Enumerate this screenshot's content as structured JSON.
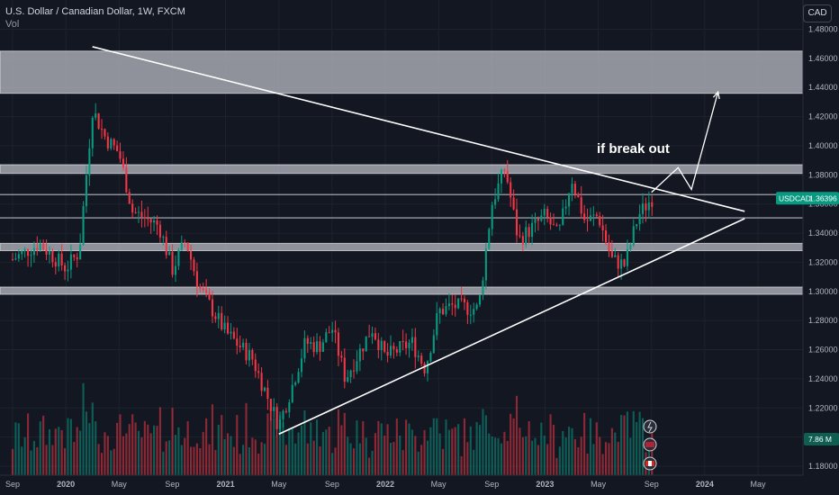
{
  "header": {
    "title": "U.S. Dollar / Canadian Dollar, 1W, FXCM",
    "volume_label": "Vol"
  },
  "currency_button": "CAD",
  "annotation": "if break out",
  "price_tag": {
    "symbol": "USDCAD",
    "value": "1.36396",
    "color": "#089981"
  },
  "volume_tag": "7.86 M",
  "colors": {
    "background": "#131722",
    "up": "#089981",
    "down": "#f23645",
    "zone": "#b2b5be",
    "line": "#ffffff",
    "grid": "#1e222d"
  },
  "icons": [
    "lightning-icon",
    "us-flag-icon",
    "canada-flag-icon"
  ],
  "chart_data": {
    "type": "candlestick",
    "title": "U.S. Dollar / Canadian Dollar, 1W, FXCM",
    "x_ticks": [
      "Sep",
      "2020",
      "May",
      "Sep",
      "2021",
      "May",
      "Sep",
      "2022",
      "May",
      "Sep",
      "2023",
      "May",
      "Sep",
      "2024",
      "May"
    ],
    "x_tick_dates": [
      "2019-09",
      "2020-01",
      "2020-05",
      "2020-09",
      "2021-01",
      "2021-05",
      "2021-09",
      "2022-01",
      "2022-05",
      "2022-09",
      "2023-01",
      "2023-05",
      "2023-09",
      "2024-01",
      "2024-05"
    ],
    "y_ticks": [
      "1.48000",
      "1.46000",
      "1.44000",
      "1.42000",
      "1.40000",
      "1.38000",
      "1.36000",
      "1.34000",
      "1.32000",
      "1.30000",
      "1.28000",
      "1.26000",
      "1.24000",
      "1.22000",
      "1.20000",
      "1.18000"
    ],
    "y_range": [
      1.175,
      1.49
    ],
    "last_price": 1.36396,
    "resistance_zones": [
      [
        1.436,
        1.465
      ],
      [
        1.381,
        1.387
      ],
      [
        1.328,
        1.333
      ],
      [
        1.298,
        1.303
      ]
    ],
    "horizontal_lines": [
      1.3665,
      1.3505
    ],
    "close_path": [
      {
        "date": "2019-09",
        "close": 1.322
      },
      {
        "date": "2019-11",
        "close": 1.333
      },
      {
        "date": "2020-01",
        "close": 1.316
      },
      {
        "date": "2020-02",
        "close": 1.327
      },
      {
        "date": "2020-03",
        "close": 1.425
      },
      {
        "date": "2020-04",
        "close": 1.405
      },
      {
        "date": "2020-05",
        "close": 1.395
      },
      {
        "date": "2020-06",
        "close": 1.355
      },
      {
        "date": "2020-08",
        "close": 1.345
      },
      {
        "date": "2020-09",
        "close": 1.315
      },
      {
        "date": "2020-10",
        "close": 1.335
      },
      {
        "date": "2020-11",
        "close": 1.303
      },
      {
        "date": "2021-01",
        "close": 1.272
      },
      {
        "date": "2021-03",
        "close": 1.254
      },
      {
        "date": "2021-05",
        "close": 1.208
      },
      {
        "date": "2021-06",
        "close": 1.235
      },
      {
        "date": "2021-07",
        "close": 1.265
      },
      {
        "date": "2021-08",
        "close": 1.262
      },
      {
        "date": "2021-09",
        "close": 1.275
      },
      {
        "date": "2021-10",
        "close": 1.24
      },
      {
        "date": "2021-12",
        "close": 1.275
      },
      {
        "date": "2022-01",
        "close": 1.255
      },
      {
        "date": "2022-03",
        "close": 1.265
      },
      {
        "date": "2022-04",
        "close": 1.247
      },
      {
        "date": "2022-05",
        "close": 1.286
      },
      {
        "date": "2022-06",
        "close": 1.29
      },
      {
        "date": "2022-08",
        "close": 1.288
      },
      {
        "date": "2022-09",
        "close": 1.36
      },
      {
        "date": "2022-10",
        "close": 1.385
      },
      {
        "date": "2022-11",
        "close": 1.335
      },
      {
        "date": "2023-01",
        "close": 1.352
      },
      {
        "date": "2023-02",
        "close": 1.338
      },
      {
        "date": "2023-03",
        "close": 1.378
      },
      {
        "date": "2023-04",
        "close": 1.348
      },
      {
        "date": "2023-05",
        "close": 1.352
      },
      {
        "date": "2023-06",
        "close": 1.322
      },
      {
        "date": "2023-07",
        "close": 1.318
      },
      {
        "date": "2023-08",
        "close": 1.352
      },
      {
        "date": "2023-09",
        "close": 1.364
      }
    ],
    "trendlines": [
      {
        "name": "descending",
        "from": {
          "date": "2020-03",
          "price": 1.468
        },
        "to": {
          "date": "2024-04",
          "price": 1.355
        }
      },
      {
        "name": "ascending",
        "from": {
          "date": "2021-05",
          "price": 1.202
        },
        "to": {
          "date": "2024-04",
          "price": 1.35
        }
      }
    ],
    "projection": [
      {
        "date": "2023-09",
        "price": 1.368
      },
      {
        "date": "2023-11",
        "price": 1.385
      },
      {
        "date": "2023-12",
        "price": 1.37
      },
      {
        "date": "2024-02",
        "price": 1.437
      }
    ]
  }
}
